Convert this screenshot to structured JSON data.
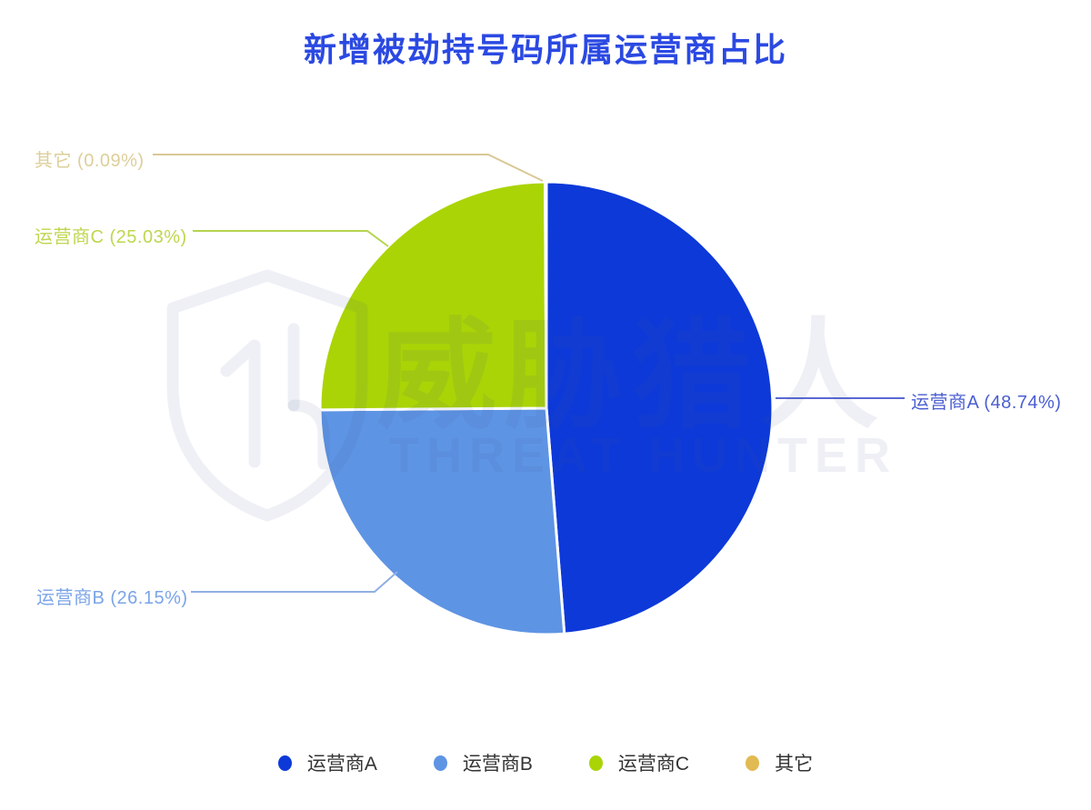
{
  "chart_data": {
    "type": "pie",
    "title": "新增被劫持号码所属运营商占比",
    "start_angle": "top",
    "direction": "clockwise",
    "legend_position": "bottom",
    "series": [
      {
        "key": "operator-a",
        "name": "运营商A",
        "percent": 48.74,
        "callout_label": "运营商A (48.74%)",
        "color": "#0d39d8",
        "callout_text_color": "#4a5ed2",
        "leader_line_color": "#5a69d2"
      },
      {
        "key": "operator-b",
        "name": "运营商B",
        "percent": 26.15,
        "callout_label": "运营商B (26.15%)",
        "color": "#5e94e4",
        "callout_text_color": "#7ba4e8",
        "leader_line_color": "#8fafe2"
      },
      {
        "key": "operator-c",
        "name": "运营商C",
        "percent": 25.03,
        "callout_label": "运营商C (25.03%)",
        "color": "#aad406",
        "callout_text_color": "#bdd74e",
        "leader_line_color": "#b5d44f"
      },
      {
        "key": "other",
        "name": "其它",
        "percent": 0.09,
        "callout_label": "其它 (0.09%)",
        "color": "#e2ba52",
        "callout_text_color": "#ddcf9a",
        "leader_line_color": "#d8c894"
      }
    ]
  },
  "watermark": {
    "cn_text": "威胁猎人",
    "en_text": "THREAT HUNTER"
  },
  "colors": {
    "title": "#2b49e2",
    "legend_text": "#333333",
    "background": "#ffffff",
    "slice_border": "#ffffff"
  }
}
